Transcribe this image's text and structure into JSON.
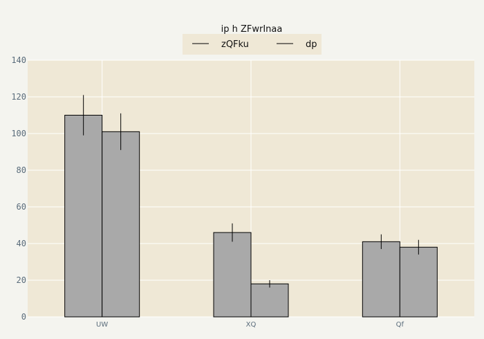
{
  "chart_data": {
    "type": "bar",
    "title": "ip h ZFwrInaa",
    "categories": [
      "UW",
      "XQ",
      "Qf"
    ],
    "series": [
      {
        "name": "zQFku",
        "values": [
          110,
          46,
          41
        ],
        "errors": [
          11,
          5,
          4
        ]
      },
      {
        "name": "dp",
        "values": [
          101,
          18,
          38
        ],
        "errors": [
          10,
          2,
          4
        ]
      }
    ],
    "ylim": [
      0,
      140
    ],
    "yticks": [
      0,
      20,
      40,
      60,
      80,
      100,
      120,
      140
    ],
    "grid": true,
    "legend_position": "top-center",
    "colors": {
      "plot_background": "#efe8d6",
      "page_background": "#f4f4ef",
      "bar_fill": "#a9a9a9",
      "bar_stroke": "#000000",
      "grid": "#ffffff",
      "tick_text": "#5a6c7b"
    }
  }
}
